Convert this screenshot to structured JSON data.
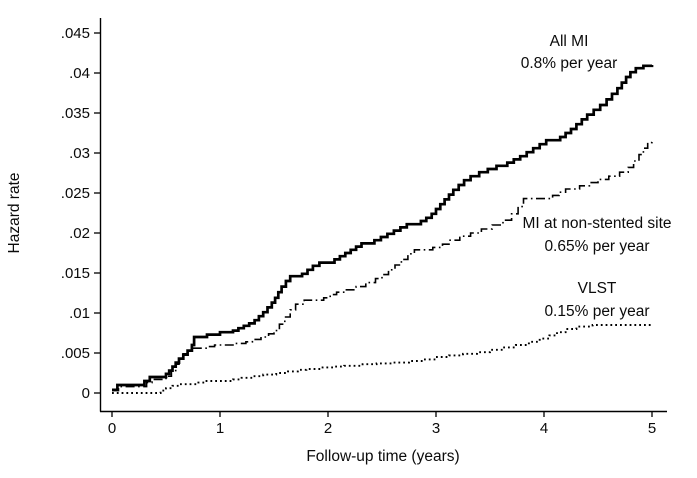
{
  "figure": {
    "background": "#ffffff",
    "text_color": "#0b0b0b",
    "axis_color": "#000000"
  },
  "chart_data": {
    "type": "line",
    "subtype": "step-cumulative-hazard",
    "title": "",
    "xlabel": "Follow-up time (years)",
    "ylabel": "Hazard rate",
    "xlim": [
      0,
      5
    ],
    "ylim": [
      0,
      0.045
    ],
    "grid": "off",
    "legend": "inline-annotations",
    "x_ticks": [
      {
        "v": 0,
        "label": "0"
      },
      {
        "v": 1,
        "label": "1"
      },
      {
        "v": 2,
        "label": "2"
      },
      {
        "v": 3,
        "label": "3"
      },
      {
        "v": 4,
        "label": "4"
      },
      {
        "v": 5,
        "label": "5"
      }
    ],
    "y_ticks": [
      {
        "v": 0,
        "label": "0"
      },
      {
        "v": 0.005,
        "label": ".005"
      },
      {
        "v": 0.01,
        "label": ".01"
      },
      {
        "v": 0.015,
        "label": ".015"
      },
      {
        "v": 0.02,
        "label": ".02"
      },
      {
        "v": 0.025,
        "label": ".025"
      },
      {
        "v": 0.03,
        "label": ".03"
      },
      {
        "v": 0.035,
        "label": ".035"
      },
      {
        "v": 0.04,
        "label": ".04"
      },
      {
        "v": 0.045,
        "label": ".045"
      }
    ],
    "series": [
      {
        "name": "All MI",
        "rate_label": "0.8% per year",
        "style": "solid",
        "color": "#000000",
        "final_value": 0.041,
        "points": [
          [
            0,
            0.0004
          ],
          [
            0.05,
            0.001
          ],
          [
            0.3,
            0.0015
          ],
          [
            0.35,
            0.002
          ],
          [
            0.5,
            0.0024
          ],
          [
            0.53,
            0.0028
          ],
          [
            0.56,
            0.0033
          ],
          [
            0.59,
            0.0038
          ],
          [
            0.62,
            0.0043
          ],
          [
            0.66,
            0.0048
          ],
          [
            0.7,
            0.0053
          ],
          [
            0.74,
            0.006
          ],
          [
            0.76,
            0.007
          ],
          [
            0.88,
            0.0073
          ],
          [
            1.0,
            0.0076
          ],
          [
            1.12,
            0.0078
          ],
          [
            1.17,
            0.0081
          ],
          [
            1.22,
            0.0084
          ],
          [
            1.27,
            0.0087
          ],
          [
            1.32,
            0.0091
          ],
          [
            1.36,
            0.0096
          ],
          [
            1.4,
            0.0101
          ],
          [
            1.44,
            0.0107
          ],
          [
            1.48,
            0.0113
          ],
          [
            1.51,
            0.0119
          ],
          [
            1.54,
            0.0126
          ],
          [
            1.57,
            0.0133
          ],
          [
            1.61,
            0.014
          ],
          [
            1.65,
            0.0146
          ],
          [
            1.76,
            0.0149
          ],
          [
            1.81,
            0.0154
          ],
          [
            1.86,
            0.0159
          ],
          [
            1.92,
            0.0163
          ],
          [
            2.06,
            0.0167
          ],
          [
            2.11,
            0.0171
          ],
          [
            2.16,
            0.0175
          ],
          [
            2.21,
            0.0179
          ],
          [
            2.26,
            0.0183
          ],
          [
            2.31,
            0.0187
          ],
          [
            2.43,
            0.0191
          ],
          [
            2.49,
            0.0195
          ],
          [
            2.55,
            0.0199
          ],
          [
            2.61,
            0.0203
          ],
          [
            2.67,
            0.0207
          ],
          [
            2.73,
            0.0211
          ],
          [
            2.86,
            0.0215
          ],
          [
            2.91,
            0.0219
          ],
          [
            2.96,
            0.0224
          ],
          [
            3.0,
            0.023
          ],
          [
            3.04,
            0.0236
          ],
          [
            3.08,
            0.0242
          ],
          [
            3.12,
            0.0248
          ],
          [
            3.16,
            0.0254
          ],
          [
            3.21,
            0.026
          ],
          [
            3.26,
            0.0266
          ],
          [
            3.32,
            0.0271
          ],
          [
            3.4,
            0.0276
          ],
          [
            3.48,
            0.028
          ],
          [
            3.56,
            0.0284
          ],
          [
            3.66,
            0.0288
          ],
          [
            3.72,
            0.0292
          ],
          [
            3.78,
            0.0296
          ],
          [
            3.84,
            0.0301
          ],
          [
            3.9,
            0.0306
          ],
          [
            3.96,
            0.0311
          ],
          [
            4.02,
            0.0316
          ],
          [
            4.15,
            0.032
          ],
          [
            4.2,
            0.0325
          ],
          [
            4.25,
            0.033
          ],
          [
            4.3,
            0.0336
          ],
          [
            4.35,
            0.0342
          ],
          [
            4.4,
            0.0348
          ],
          [
            4.46,
            0.0354
          ],
          [
            4.52,
            0.036
          ],
          [
            4.58,
            0.0367
          ],
          [
            4.63,
            0.0374
          ],
          [
            4.68,
            0.0381
          ],
          [
            4.72,
            0.0388
          ],
          [
            4.76,
            0.0395
          ],
          [
            4.8,
            0.0401
          ],
          [
            4.85,
            0.0406
          ],
          [
            4.92,
            0.0409
          ],
          [
            5.0,
            0.041
          ]
        ]
      },
      {
        "name": "MI at non-stented site",
        "rate_label": "0.65% per year",
        "style": "dash-dot",
        "color": "#000000",
        "final_value": 0.032,
        "points": [
          [
            0,
            0.0003
          ],
          [
            0.06,
            0.0008
          ],
          [
            0.32,
            0.0013
          ],
          [
            0.37,
            0.0017
          ],
          [
            0.5,
            0.0021
          ],
          [
            0.55,
            0.0028
          ],
          [
            0.59,
            0.0036
          ],
          [
            0.62,
            0.0043
          ],
          [
            0.66,
            0.0049
          ],
          [
            0.7,
            0.0053
          ],
          [
            0.74,
            0.0056
          ],
          [
            0.88,
            0.0058
          ],
          [
            0.95,
            0.006
          ],
          [
            1.12,
            0.0062
          ],
          [
            1.24,
            0.0064
          ],
          [
            1.3,
            0.0067
          ],
          [
            1.38,
            0.007
          ],
          [
            1.45,
            0.0074
          ],
          [
            1.5,
            0.0078
          ],
          [
            1.55,
            0.0086
          ],
          [
            1.6,
            0.0095
          ],
          [
            1.65,
            0.0104
          ],
          [
            1.7,
            0.0111
          ],
          [
            1.78,
            0.0116
          ],
          [
            1.96,
            0.0119
          ],
          [
            2.02,
            0.0123
          ],
          [
            2.08,
            0.0126
          ],
          [
            2.17,
            0.0129
          ],
          [
            2.26,
            0.0133
          ],
          [
            2.35,
            0.0138
          ],
          [
            2.44,
            0.0143
          ],
          [
            2.5,
            0.0148
          ],
          [
            2.56,
            0.0154
          ],
          [
            2.62,
            0.016
          ],
          [
            2.68,
            0.0167
          ],
          [
            2.74,
            0.0174
          ],
          [
            2.8,
            0.0179
          ],
          [
            2.97,
            0.0182
          ],
          [
            3.06,
            0.0186
          ],
          [
            3.12,
            0.0191
          ],
          [
            3.22,
            0.0196
          ],
          [
            3.32,
            0.02
          ],
          [
            3.42,
            0.0205
          ],
          [
            3.52,
            0.021
          ],
          [
            3.62,
            0.0216
          ],
          [
            3.7,
            0.0224
          ],
          [
            3.76,
            0.0233
          ],
          [
            3.81,
            0.0243
          ],
          [
            4.08,
            0.0247
          ],
          [
            4.14,
            0.0251
          ],
          [
            4.2,
            0.0255
          ],
          [
            4.33,
            0.0259
          ],
          [
            4.42,
            0.0263
          ],
          [
            4.5,
            0.0267
          ],
          [
            4.6,
            0.0271
          ],
          [
            4.7,
            0.0276
          ],
          [
            4.78,
            0.0282
          ],
          [
            4.83,
            0.029
          ],
          [
            4.88,
            0.0298
          ],
          [
            4.92,
            0.0306
          ],
          [
            4.96,
            0.0313
          ],
          [
            5.0,
            0.0318
          ]
        ]
      },
      {
        "name": "VLST",
        "rate_label": "0.15% per year",
        "style": "dotted",
        "color": "#000000",
        "final_value": 0.0086,
        "points": [
          [
            0,
            0
          ],
          [
            0.45,
            0.0003
          ],
          [
            0.5,
            0.0006
          ],
          [
            0.56,
            0.0009
          ],
          [
            0.63,
            0.0011
          ],
          [
            0.8,
            0.0013
          ],
          [
            0.86,
            0.0015
          ],
          [
            1.12,
            0.0017
          ],
          [
            1.2,
            0.0019
          ],
          [
            1.3,
            0.0021
          ],
          [
            1.4,
            0.0023
          ],
          [
            1.52,
            0.0025
          ],
          [
            1.63,
            0.0027
          ],
          [
            1.72,
            0.0029
          ],
          [
            1.8,
            0.003
          ],
          [
            1.95,
            0.0032
          ],
          [
            2.05,
            0.0033
          ],
          [
            2.15,
            0.0034
          ],
          [
            2.32,
            0.0036
          ],
          [
            2.45,
            0.0037
          ],
          [
            2.6,
            0.0038
          ],
          [
            2.75,
            0.004
          ],
          [
            2.88,
            0.0042
          ],
          [
            3.0,
            0.0045
          ],
          [
            3.12,
            0.0047
          ],
          [
            3.25,
            0.0049
          ],
          [
            3.38,
            0.0051
          ],
          [
            3.5,
            0.0054
          ],
          [
            3.62,
            0.0057
          ],
          [
            3.74,
            0.006
          ],
          [
            3.86,
            0.0064
          ],
          [
            3.96,
            0.0068
          ],
          [
            4.05,
            0.0072
          ],
          [
            4.12,
            0.0076
          ],
          [
            4.2,
            0.008
          ],
          [
            4.3,
            0.0083
          ],
          [
            4.45,
            0.0085
          ],
          [
            5.0,
            0.0086
          ]
        ]
      }
    ]
  }
}
